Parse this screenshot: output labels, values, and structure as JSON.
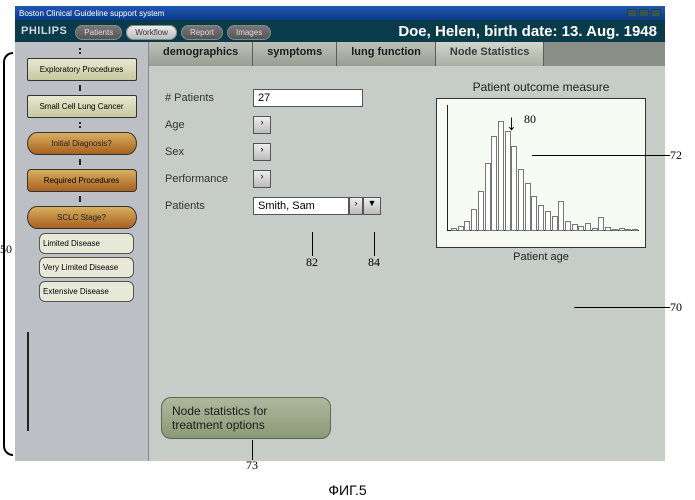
{
  "window_title": "Boston Clinical Guideline support system",
  "brand": "PHILIPS",
  "nav": [
    {
      "label": "Patients",
      "active": false
    },
    {
      "label": "Workflow",
      "active": true
    },
    {
      "label": "Report",
      "active": false
    },
    {
      "label": "Images",
      "active": false
    }
  ],
  "patient_banner": "Doe, Helen, birth date: 13.  Aug.  1948",
  "sidebar": {
    "nodes": [
      {
        "label": "Exploratory Procedures",
        "style": "rect"
      },
      {
        "label": "Small Cell Lung Cancer",
        "style": "rect"
      },
      {
        "label": "Initial Diagnosis?",
        "style": "diamond"
      },
      {
        "label": "Required Procedures",
        "style": "rect2"
      },
      {
        "label": "SCLC Stage?",
        "style": "diamond"
      }
    ],
    "branches": [
      "Limited Disease",
      "Very Limited Disease",
      "Extensive Disease"
    ]
  },
  "tabs": [
    {
      "label": "demographics"
    },
    {
      "label": "symptoms"
    },
    {
      "label": "lung function"
    },
    {
      "label": "Node Statistics",
      "active": true
    }
  ],
  "form": {
    "patients_count": {
      "label": "# Patients",
      "value": "27"
    },
    "age": {
      "label": "Age"
    },
    "sex": {
      "label": "Sex"
    },
    "performance": {
      "label": "Performance"
    },
    "patients": {
      "label": "Patients",
      "value": "Smith, Sam"
    }
  },
  "chart": {
    "title": "Patient outcome measure",
    "x_label": "Patient age",
    "background_color": "#f8faf4",
    "border_color": "#333333",
    "bar_color": "#ffffff",
    "bar_border": "#777777",
    "values": [
      3,
      5,
      10,
      22,
      40,
      68,
      95,
      110,
      100,
      85,
      62,
      48,
      35,
      26,
      20,
      15,
      30,
      10,
      7,
      5,
      8,
      3,
      14,
      4,
      2,
      3,
      1,
      2
    ],
    "y_max": 120
  },
  "node_stats_button": "Node statistics for treatment options",
  "callouts": {
    "c50": "50",
    "c70": "70",
    "c72": "72",
    "c73": "73",
    "c80": "80",
    "c82": "82",
    "c84": "84"
  },
  "figure_label": "ФИГ.5"
}
